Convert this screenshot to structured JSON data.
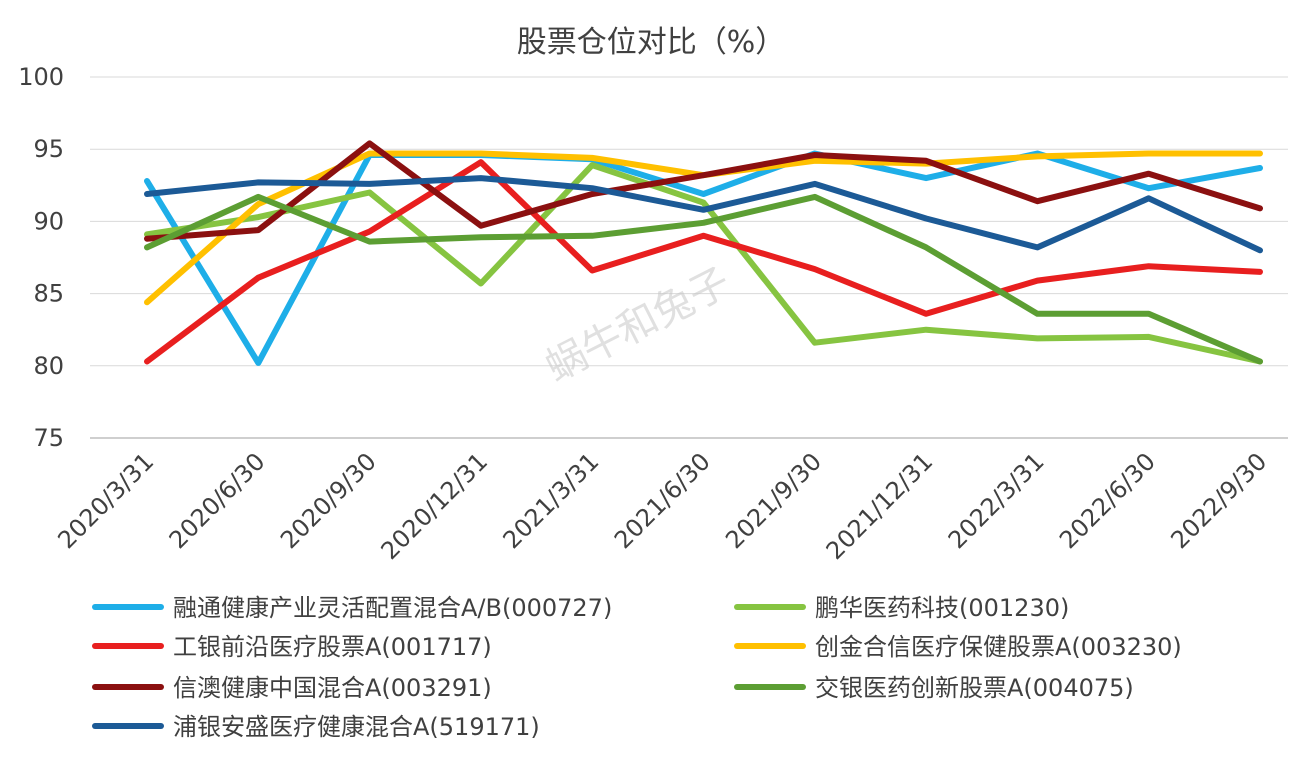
{
  "chart_data": {
    "type": "line",
    "title": "股票仓位对比（%）",
    "xlabel": "",
    "ylabel": "",
    "ylim": [
      75,
      100
    ],
    "yticks": [
      75,
      80,
      85,
      90,
      95,
      100
    ],
    "grid": true,
    "legend_position": "bottom",
    "categories": [
      "2020/3/31",
      "2020/6/30",
      "2020/9/30",
      "2020/12/31",
      "2021/3/31",
      "2021/6/30",
      "2021/9/30",
      "2021/12/31",
      "2022/3/31",
      "2022/6/30",
      "2022/9/30"
    ],
    "series": [
      {
        "name": "融通健康产业灵活配置混合A/B(000727)",
        "color": "#1eaee8",
        "values": [
          92.8,
          80.2,
          94.6,
          94.6,
          94.3,
          91.9,
          94.7,
          93.0,
          94.7,
          92.3,
          93.7
        ]
      },
      {
        "name": "鹏华医药科技(001230)",
        "color": "#86c441",
        "values": [
          89.1,
          90.3,
          92.0,
          85.7,
          93.9,
          91.3,
          81.6,
          82.5,
          81.9,
          82.0,
          80.3
        ]
      },
      {
        "name": "工银前沿医疗股票A(001717)",
        "color": "#e81f1f",
        "values": [
          80.3,
          86.1,
          89.3,
          94.1,
          86.6,
          89.0,
          86.7,
          83.6,
          85.9,
          86.9,
          86.5
        ]
      },
      {
        "name": "创金合信医疗保健股票A(003230)",
        "color": "#ffc000",
        "values": [
          84.4,
          91.2,
          94.7,
          94.7,
          94.4,
          93.2,
          94.2,
          94.0,
          94.5,
          94.7,
          94.7
        ]
      },
      {
        "name": "信澳健康中国混合A(003291)",
        "color": "#8b1010",
        "values": [
          88.8,
          89.4,
          95.4,
          89.7,
          91.9,
          93.2,
          94.6,
          94.2,
          91.4,
          93.3,
          90.9
        ]
      },
      {
        "name": "交银医药创新股票A(004075)",
        "color": "#5c9e33",
        "values": [
          88.2,
          91.7,
          88.6,
          88.9,
          89.0,
          89.9,
          91.7,
          88.2,
          83.6,
          83.6,
          80.3
        ]
      },
      {
        "name": "浦银安盛医疗健康混合A(519171)",
        "color": "#1c5a96",
        "values": [
          91.9,
          92.7,
          92.6,
          93.0,
          92.3,
          90.8,
          92.6,
          90.2,
          88.2,
          91.6,
          88.0
        ]
      }
    ]
  },
  "watermark": {
    "text": "蜗牛和兔子"
  }
}
